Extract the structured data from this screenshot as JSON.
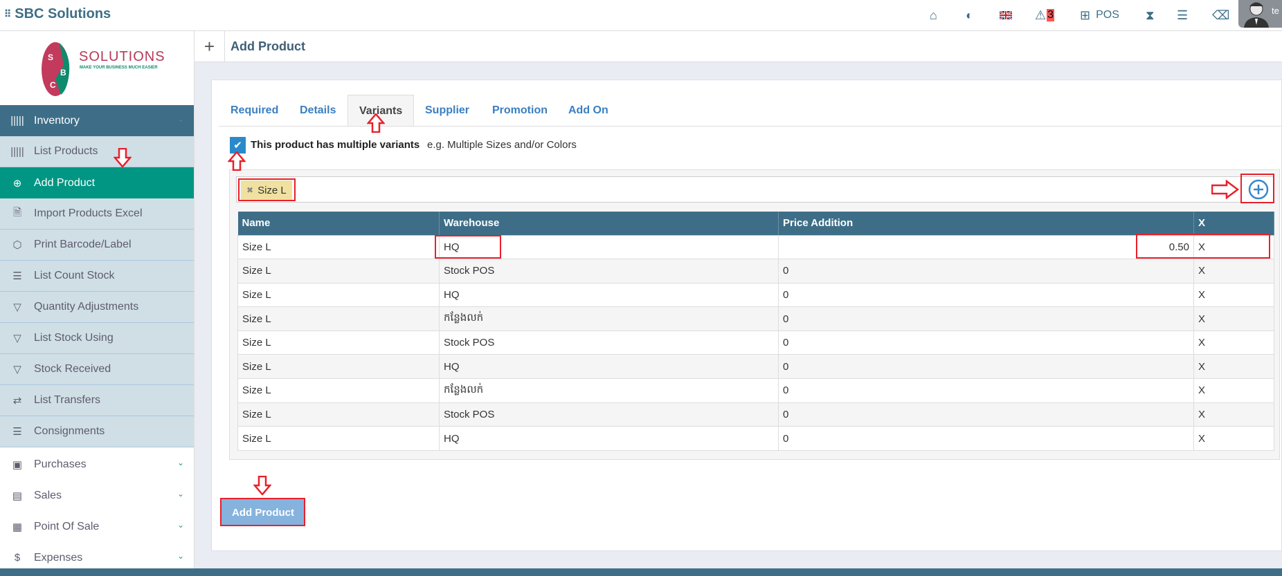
{
  "app": {
    "title": "SBC Solutions"
  },
  "topbar": {
    "icons": [
      "home-icon",
      "contrast-icon",
      "uk-flag-icon",
      "warning-icon",
      "grid-icon",
      "hourglass-icon",
      "list-icon",
      "eraser-icon"
    ],
    "alert_count": "3",
    "pos_label": "POS",
    "user_initials": "te"
  },
  "logo": {
    "text": "SOLUTIONS",
    "tagline": "MAKE YOUR BUSINESS MUCH EASIER",
    "letters": [
      "S",
      "B",
      "C"
    ]
  },
  "sidebar": {
    "section": {
      "label": "Inventory",
      "icon": "barcode-icon"
    },
    "items": [
      {
        "label": "List Products",
        "icon": "barcode-icon"
      },
      {
        "label": "Add Product",
        "icon": "plus-circle-icon"
      },
      {
        "label": "Import Products Excel",
        "icon": "file-icon"
      },
      {
        "label": "Print Barcode/Label",
        "icon": "tags-icon"
      },
      {
        "label": "List Count Stock",
        "icon": "ordered-list-icon"
      },
      {
        "label": "Quantity Adjustments",
        "icon": "filter-icon"
      },
      {
        "label": "List Stock Using",
        "icon": "filter-icon"
      },
      {
        "label": "Stock Received",
        "icon": "filter-icon"
      },
      {
        "label": "List Transfers",
        "icon": "transfer-icon"
      },
      {
        "label": "Consignments",
        "icon": "ordered-list-icon"
      }
    ],
    "groups": [
      {
        "label": "Purchases",
        "icon": "money-icon"
      },
      {
        "label": "Sales",
        "icon": "receipt-icon"
      },
      {
        "label": "Point Of Sale",
        "icon": "cash-register-icon"
      },
      {
        "label": "Expenses",
        "icon": "dollar-icon"
      }
    ]
  },
  "page": {
    "title": "Add Product"
  },
  "tabs": [
    "Required",
    "Details",
    "Variants",
    "Supplier",
    "Promotion",
    "Add On"
  ],
  "active_tab": "Variants",
  "variants": {
    "checkbox_label": "This product has multiple variants",
    "checkbox_hint": "e.g. Multiple Sizes and/or Colors",
    "checked": true,
    "tag": "Size L",
    "columns": [
      "Name",
      "Warehouse",
      "Price Addition",
      "X"
    ],
    "rows": [
      {
        "name": "Size L",
        "warehouse": "HQ",
        "price": "0.50"
      },
      {
        "name": "Size L",
        "warehouse": "Stock POS",
        "price": "0"
      },
      {
        "name": "Size L",
        "warehouse": "HQ",
        "price": "0"
      },
      {
        "name": "Size L",
        "warehouse": "កន្លែងលក់",
        "price": "0"
      },
      {
        "name": "Size L",
        "warehouse": "Stock POS",
        "price": "0"
      },
      {
        "name": "Size L",
        "warehouse": "HQ",
        "price": "0"
      },
      {
        "name": "Size L",
        "warehouse": "កន្លែងលក់",
        "price": "0"
      },
      {
        "name": "Size L",
        "warehouse": "Stock POS",
        "price": "0"
      },
      {
        "name": "Size L",
        "warehouse": "HQ",
        "price": "0"
      }
    ],
    "remove_label": "X"
  },
  "submit_label": "Add Product",
  "colors": {
    "primary": "#3e6e87",
    "active": "#009683",
    "link": "#3a7fc1",
    "annotation": "#e8202a"
  }
}
